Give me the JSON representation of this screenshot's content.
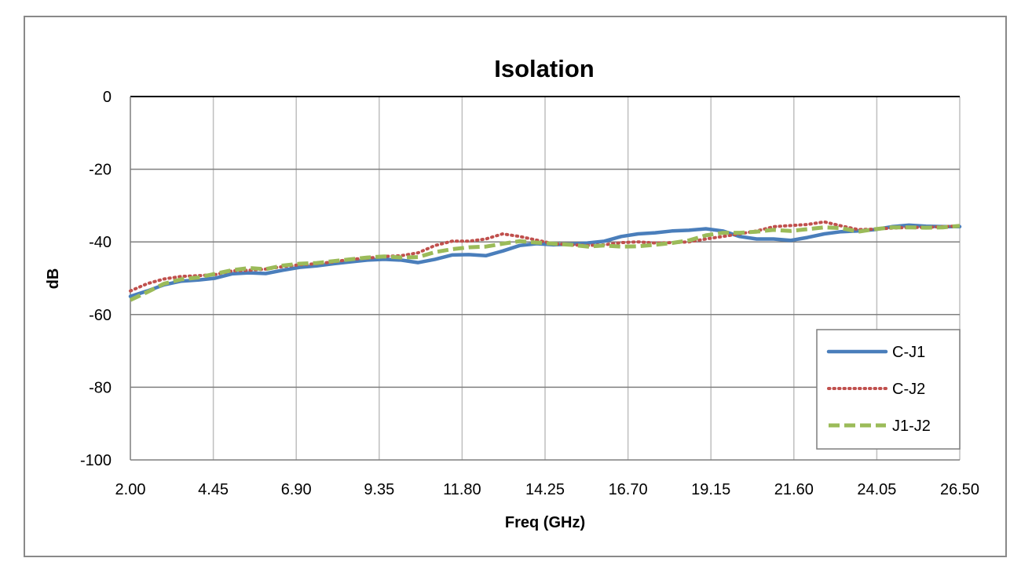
{
  "chart_data": {
    "type": "line",
    "title": "Isolation",
    "xlabel": "Freq (GHz)",
    "ylabel": "dB",
    "xlim": [
      2.0,
      26.5
    ],
    "ylim": [
      -100,
      0
    ],
    "x_ticks": [
      "2.00",
      "4.45",
      "6.90",
      "9.35",
      "11.80",
      "14.25",
      "16.70",
      "19.15",
      "21.60",
      "24.05",
      "26.50"
    ],
    "y_ticks": [
      "0",
      "-20",
      "-40",
      "-60",
      "-80",
      "-100"
    ],
    "grid": true,
    "legend_position": "right",
    "series": [
      {
        "name": "C-J1",
        "color": "#4a7ebb",
        "style": "solid",
        "points": [
          [
            2.0,
            -55.0
          ],
          [
            2.5,
            -53.5
          ],
          [
            3.0,
            -51.8
          ],
          [
            3.5,
            -50.8
          ],
          [
            4.0,
            -50.5
          ],
          [
            4.5,
            -50.0
          ],
          [
            5.0,
            -48.8
          ],
          [
            5.5,
            -48.5
          ],
          [
            6.0,
            -48.7
          ],
          [
            6.5,
            -47.8
          ],
          [
            7.0,
            -47.0
          ],
          [
            7.5,
            -46.6
          ],
          [
            8.0,
            -46.0
          ],
          [
            8.5,
            -45.5
          ],
          [
            9.0,
            -45.0
          ],
          [
            9.5,
            -44.8
          ],
          [
            10.0,
            -45.0
          ],
          [
            10.5,
            -45.7
          ],
          [
            11.0,
            -44.8
          ],
          [
            11.5,
            -43.6
          ],
          [
            12.0,
            -43.5
          ],
          [
            12.5,
            -43.8
          ],
          [
            13.0,
            -42.5
          ],
          [
            13.5,
            -41.0
          ],
          [
            14.0,
            -40.5
          ],
          [
            14.5,
            -40.8
          ],
          [
            15.0,
            -40.6
          ],
          [
            15.5,
            -40.3
          ],
          [
            16.0,
            -39.8
          ],
          [
            16.5,
            -38.5
          ],
          [
            17.0,
            -37.8
          ],
          [
            17.5,
            -37.5
          ],
          [
            18.0,
            -37.0
          ],
          [
            18.5,
            -36.8
          ],
          [
            19.0,
            -36.4
          ],
          [
            19.5,
            -37.0
          ],
          [
            20.0,
            -38.5
          ],
          [
            20.5,
            -39.2
          ],
          [
            21.0,
            -39.2
          ],
          [
            21.5,
            -39.6
          ],
          [
            22.0,
            -38.8
          ],
          [
            22.5,
            -37.8
          ],
          [
            23.0,
            -37.2
          ],
          [
            23.5,
            -37.0
          ],
          [
            24.0,
            -36.6
          ],
          [
            24.5,
            -35.8
          ],
          [
            25.0,
            -35.4
          ],
          [
            25.5,
            -35.7
          ],
          [
            26.0,
            -35.8
          ],
          [
            26.5,
            -35.8
          ]
        ]
      },
      {
        "name": "C-J2",
        "color": "#c0504d",
        "style": "dotted",
        "points": [
          [
            2.0,
            -53.5
          ],
          [
            2.5,
            -51.5
          ],
          [
            3.0,
            -50.2
          ],
          [
            3.5,
            -49.5
          ],
          [
            4.0,
            -49.3
          ],
          [
            4.5,
            -49.0
          ],
          [
            5.0,
            -48.0
          ],
          [
            5.5,
            -47.8
          ],
          [
            6.0,
            -47.5
          ],
          [
            6.5,
            -46.8
          ],
          [
            7.0,
            -46.3
          ],
          [
            7.5,
            -46.0
          ],
          [
            8.0,
            -45.5
          ],
          [
            8.5,
            -44.8
          ],
          [
            9.0,
            -44.5
          ],
          [
            9.5,
            -44.0
          ],
          [
            10.0,
            -43.8
          ],
          [
            10.5,
            -43.0
          ],
          [
            11.0,
            -41.0
          ],
          [
            11.5,
            -39.8
          ],
          [
            12.0,
            -39.8
          ],
          [
            12.5,
            -39.2
          ],
          [
            13.0,
            -37.8
          ],
          [
            13.5,
            -38.5
          ],
          [
            14.0,
            -39.5
          ],
          [
            14.5,
            -40.5
          ],
          [
            15.0,
            -40.8
          ],
          [
            15.5,
            -41.0
          ],
          [
            16.0,
            -40.8
          ],
          [
            16.5,
            -40.2
          ],
          [
            17.0,
            -40.0
          ],
          [
            17.5,
            -40.3
          ],
          [
            18.0,
            -40.2
          ],
          [
            18.5,
            -40.0
          ],
          [
            19.0,
            -39.2
          ],
          [
            19.5,
            -38.5
          ],
          [
            20.0,
            -37.8
          ],
          [
            20.5,
            -37.0
          ],
          [
            21.0,
            -35.8
          ],
          [
            21.5,
            -35.5
          ],
          [
            22.0,
            -35.2
          ],
          [
            22.5,
            -34.5
          ],
          [
            23.0,
            -35.6
          ],
          [
            23.5,
            -36.6
          ],
          [
            24.0,
            -36.5
          ],
          [
            24.5,
            -36.2
          ],
          [
            25.0,
            -36.0
          ],
          [
            25.5,
            -36.0
          ],
          [
            26.0,
            -35.8
          ],
          [
            26.5,
            -35.6
          ]
        ]
      },
      {
        "name": "J1-J2",
        "color": "#9bbb59",
        "style": "dashed",
        "points": [
          [
            2.0,
            -56.0
          ],
          [
            2.5,
            -53.8
          ],
          [
            3.0,
            -51.5
          ],
          [
            3.5,
            -50.3
          ],
          [
            4.0,
            -49.8
          ],
          [
            4.5,
            -48.8
          ],
          [
            5.0,
            -47.8
          ],
          [
            5.5,
            -47.2
          ],
          [
            6.0,
            -47.5
          ],
          [
            6.5,
            -46.5
          ],
          [
            7.0,
            -46.0
          ],
          [
            7.5,
            -45.8
          ],
          [
            8.0,
            -45.3
          ],
          [
            8.5,
            -44.8
          ],
          [
            9.0,
            -44.3
          ],
          [
            9.5,
            -44.0
          ],
          [
            10.0,
            -44.3
          ],
          [
            10.5,
            -44.2
          ],
          [
            11.0,
            -42.8
          ],
          [
            11.5,
            -42.0
          ],
          [
            12.0,
            -41.5
          ],
          [
            12.5,
            -41.3
          ],
          [
            13.0,
            -40.5
          ],
          [
            13.5,
            -39.8
          ],
          [
            14.0,
            -40.2
          ],
          [
            14.5,
            -40.5
          ],
          [
            15.0,
            -40.8
          ],
          [
            15.5,
            -41.3
          ],
          [
            16.0,
            -41.0
          ],
          [
            16.5,
            -41.3
          ],
          [
            17.0,
            -41.2
          ],
          [
            17.5,
            -40.8
          ],
          [
            18.0,
            -40.3
          ],
          [
            18.5,
            -39.6
          ],
          [
            19.0,
            -38.2
          ],
          [
            19.5,
            -37.5
          ],
          [
            20.0,
            -37.5
          ],
          [
            20.5,
            -37.2
          ],
          [
            21.0,
            -36.7
          ],
          [
            21.5,
            -37.0
          ],
          [
            22.0,
            -36.5
          ],
          [
            22.5,
            -36.0
          ],
          [
            23.0,
            -36.2
          ],
          [
            23.5,
            -37.2
          ],
          [
            24.0,
            -36.5
          ],
          [
            24.5,
            -36.0
          ],
          [
            25.0,
            -36.0
          ],
          [
            25.5,
            -36.1
          ],
          [
            26.0,
            -36.0
          ],
          [
            26.5,
            -35.6
          ]
        ]
      }
    ]
  }
}
